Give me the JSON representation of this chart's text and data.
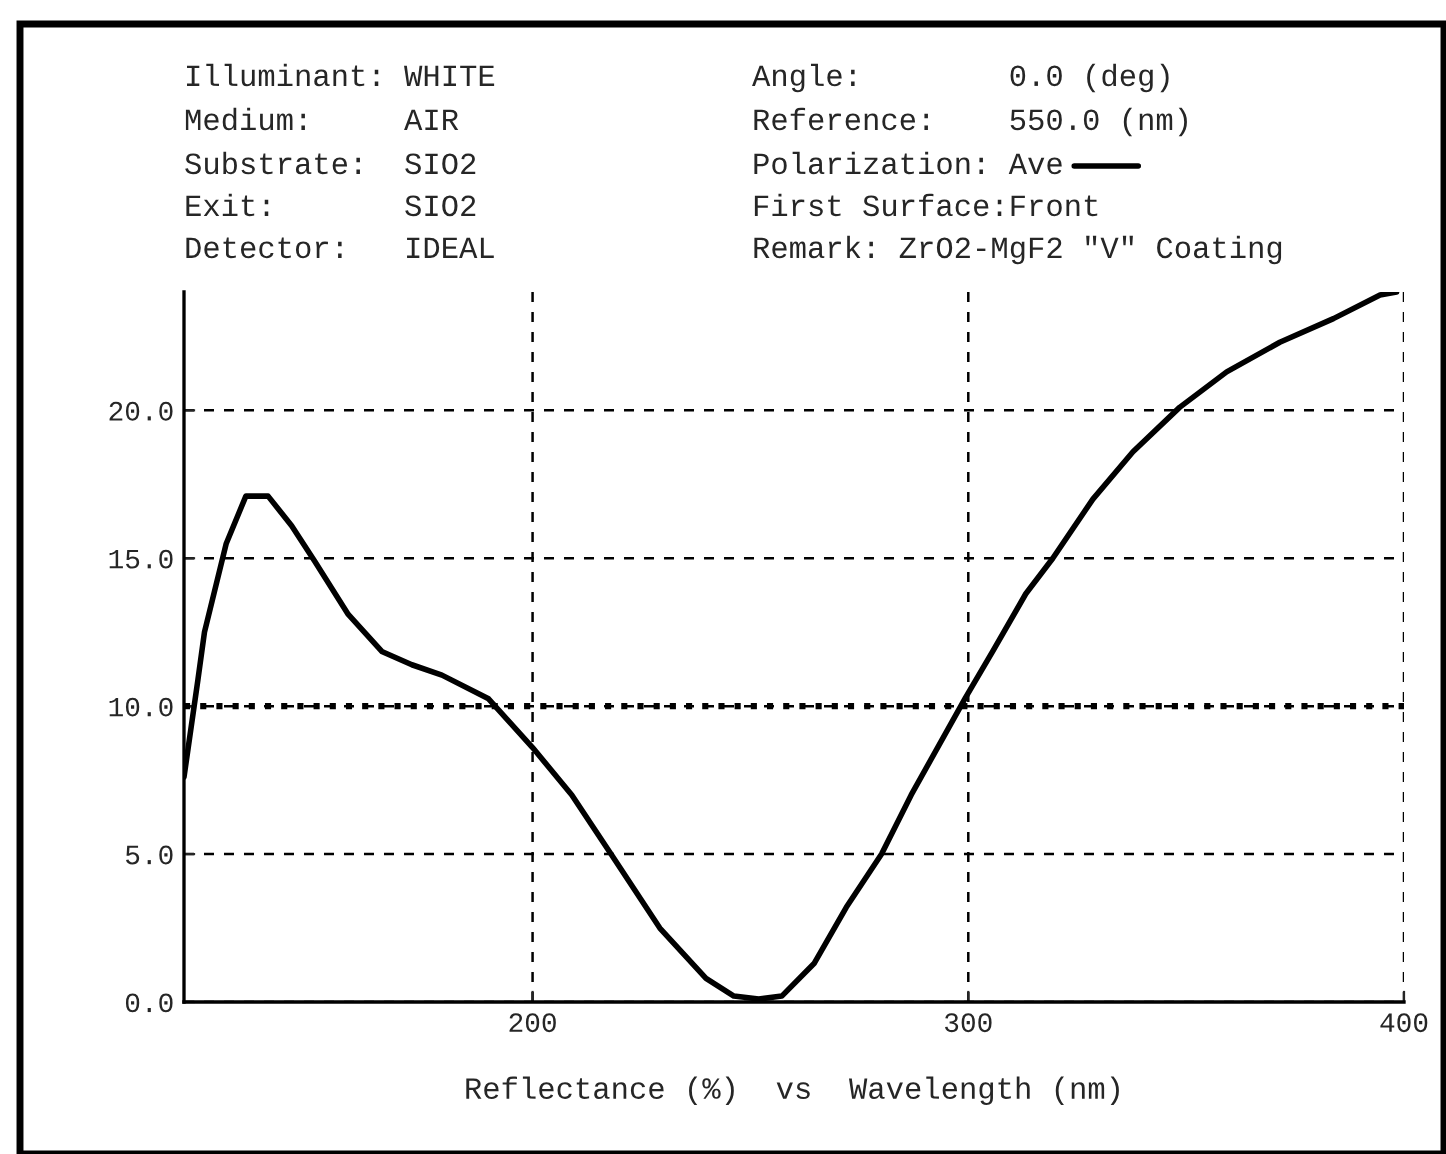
{
  "chart_data": {
    "type": "line",
    "xlabel": "Reflectance (%)  vs  Wavelength (nm)",
    "annotations": [
      "Illuminant: WHITE",
      "Medium:     AIR",
      "Substrate:  SIO2",
      "Exit:       SIO2",
      "Detector:   IDEAL",
      "Angle:        0.0 (deg)",
      "Reference:    550.0 (nm)",
      "Polarization: Ave",
      "First Surface:Front",
      "Remark: ZrO2-MgF2 \"V\" Coating"
    ],
    "series": [
      {
        "color": "#000000",
        "x": [
          120,
          123.2,
          124.7,
          129.7,
          134.2,
          139.3,
          144.7,
          150,
          157.7,
          165.4,
          172.3,
          179.2,
          189.9,
          200,
          209,
          218,
          229.2,
          239.8,
          246.2,
          251.9,
          257.2,
          264.6,
          272,
          280.1,
          286.9,
          299.4,
          305.6,
          313.2,
          319.4,
          328.6,
          337.8,
          348.5,
          359.3,
          371.5,
          383.8,
          394.5,
          398.3
        ],
        "values": [
          7.6,
          10.9,
          12.5,
          15.5,
          17.1,
          17.1,
          16.1,
          14.9,
          13.1,
          11.85,
          11.4,
          11.05,
          10.25,
          8.6,
          7.0,
          5.0,
          2.5,
          0.8,
          0.2,
          0.1,
          0.2,
          1.3,
          3.2,
          5.0,
          7.0,
          10.3,
          11.85,
          13.8,
          15.0,
          17.0,
          18.6,
          20.1,
          21.3,
          22.3,
          23.1,
          23.9,
          24.0
        ]
      }
    ],
    "xlim": [
      120,
      400
    ],
    "ylim": [
      0,
      24
    ],
    "xticks": [
      200,
      300,
      400
    ],
    "yticks": [
      {
        "value": 0,
        "label": "0.0"
      },
      {
        "value": 5,
        "label": "5.0"
      },
      {
        "value": 10,
        "label": "10.0"
      },
      {
        "value": 15,
        "label": "15.0"
      },
      {
        "value": 20,
        "label": "20.0"
      }
    ],
    "grid": true,
    "ref_lines": [
      {
        "axis": "y",
        "value": 10,
        "line_style": "dotted",
        "color": "#000000"
      }
    ],
    "line_style": "solid"
  }
}
